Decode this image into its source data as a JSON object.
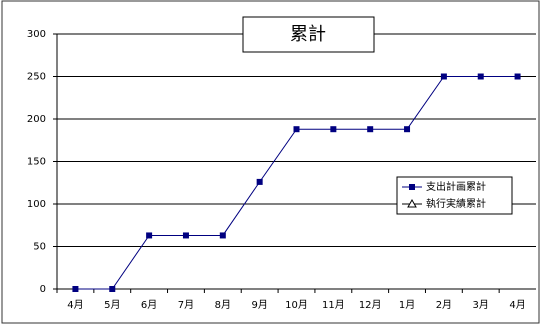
{
  "chart_data": {
    "type": "line",
    "title": "累計",
    "categories": [
      "4月",
      "5月",
      "6月",
      "7月",
      "8月",
      "9月",
      "10月",
      "11月",
      "12月",
      "1月",
      "2月",
      "3月",
      "4月"
    ],
    "series": [
      {
        "name": "支出計画累計",
        "color": "#000080",
        "marker": "square",
        "values": [
          0,
          0,
          63,
          63,
          63,
          126,
          188,
          188,
          188,
          188,
          250,
          250,
          250
        ]
      },
      {
        "name": "執行実績累計",
        "color": "#000000",
        "marker": "triangle",
        "values": [
          null,
          null,
          null,
          null,
          null,
          null,
          null,
          null,
          null,
          null,
          null,
          null,
          null
        ]
      }
    ],
    "ylim": [
      0,
      300
    ],
    "yticks": [
      0,
      50,
      100,
      150,
      200,
      250,
      300
    ],
    "grid": true,
    "legend": "right"
  }
}
